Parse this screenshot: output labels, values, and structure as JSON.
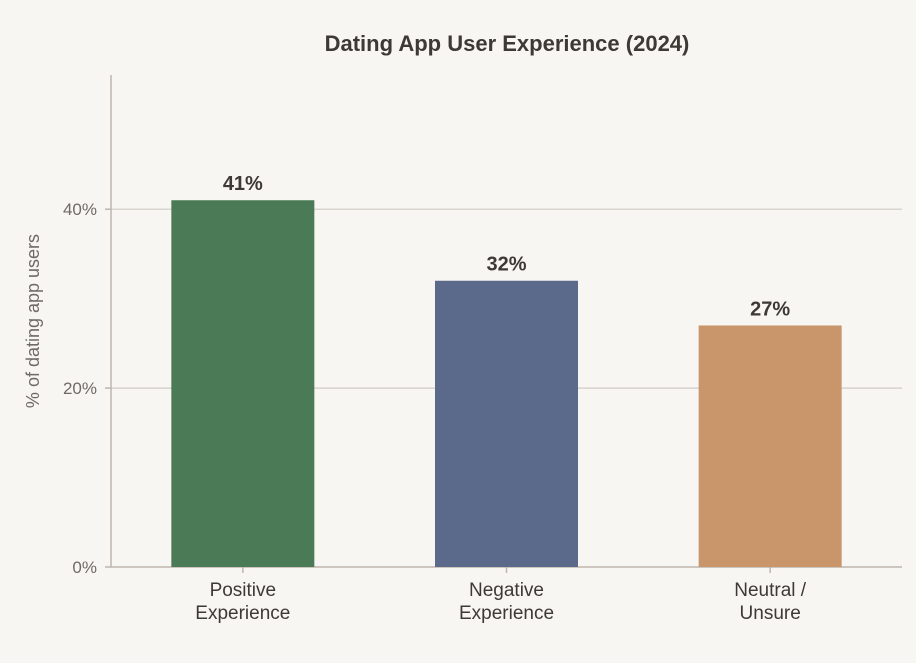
{
  "chart_data": {
    "type": "bar",
    "title": "Dating App User Experience (2024)",
    "xlabel": "",
    "ylabel": "% of dating app users",
    "ylim": [
      0,
      55
    ],
    "yticks": [
      0,
      20,
      40
    ],
    "ytick_labels": [
      "0%",
      "20%",
      "40%"
    ],
    "grid": true,
    "categories": [
      [
        "Positive",
        "Experience"
      ],
      [
        "Negative",
        "Experience"
      ],
      [
        "Neutral /",
        "Unsure"
      ]
    ],
    "values": [
      41,
      32,
      27
    ],
    "data_labels": [
      "41%",
      "32%",
      "27%"
    ],
    "colors": [
      "#4a7a56",
      "#5b6a8a",
      "#c9956a"
    ]
  }
}
